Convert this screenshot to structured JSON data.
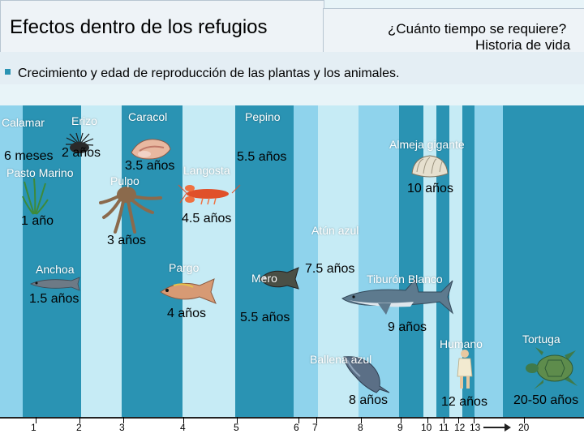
{
  "header": {
    "title": "Efectos dentro de los refugios",
    "question": "¿Cuánto tiempo se requiere?",
    "subtitle": "Historia de vida"
  },
  "bullet": {
    "text": "Crecimiento y edad de reproducción de las plantas y los animales."
  },
  "animals": {
    "calamar": {
      "name": "Calamar",
      "age": "6 meses"
    },
    "erizo": {
      "name": "Erizo",
      "age": "2 años"
    },
    "caracol": {
      "name": "Caracol",
      "age": "3.5 años"
    },
    "pepino": {
      "name": "Pepino",
      "age": "5.5 años"
    },
    "almeja": {
      "name": "Almeja gigante",
      "age": "10 años"
    },
    "pasto": {
      "name": "Pasto Marino",
      "age": "1 año"
    },
    "pulpo": {
      "name": "Pulpo",
      "age": "3 años"
    },
    "langosta": {
      "name": "Langosta",
      "age": "4.5 años"
    },
    "atun": {
      "name": "Atún azul",
      "age": "7.5 años"
    },
    "anchoa": {
      "name": "Anchoa",
      "age": "1.5 años"
    },
    "pargo": {
      "name": "Pargo",
      "age": "4 años"
    },
    "mero": {
      "name": "Mero",
      "age": "5.5 años"
    },
    "tiburon": {
      "name": "Tiburón Blanco",
      "age": "9 años"
    },
    "humano": {
      "name": "Humano",
      "age": "12 años"
    },
    "tortuga": {
      "name": "Tortuga",
      "age": "20-50 años"
    },
    "ballena": {
      "name": "Ballena azul",
      "age": "8 años"
    }
  },
  "axis": {
    "ticks": [
      "1",
      "2",
      "3",
      "4",
      "5",
      "6",
      "7",
      "8",
      "9",
      "10",
      "11",
      "12",
      "13",
      "20"
    ]
  },
  "colors": {
    "background": "#e8f4f8",
    "stripe_dark": "#2a93b3",
    "stripe_light": "#8fd3ec",
    "stripe_pale": "#c6ebf5"
  }
}
